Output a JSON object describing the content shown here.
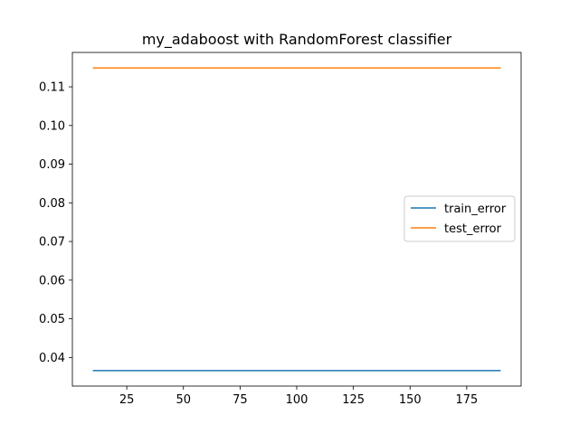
{
  "chart_data": {
    "type": "line",
    "title": "my_adaboost with RandomForest classifier",
    "xlabel": "",
    "ylabel": "",
    "x": [
      10,
      190
    ],
    "series": [
      {
        "name": "train_error",
        "color": "#1f77b4",
        "values": [
          0.0366,
          0.0366
        ]
      },
      {
        "name": "test_error",
        "color": "#ff7f0e",
        "values": [
          0.1149,
          0.1149
        ]
      }
    ],
    "xlim": [
      1,
      199
    ],
    "ylim": [
      0.0326,
      0.1189
    ],
    "xticks": [
      25,
      50,
      75,
      100,
      125,
      150,
      175
    ],
    "xtick_labels": [
      "25",
      "50",
      "75",
      "100",
      "125",
      "150",
      "175"
    ],
    "yticks": [
      0.04,
      0.05,
      0.06,
      0.07,
      0.08,
      0.09,
      0.1,
      0.11
    ],
    "ytick_labels": [
      "0.04",
      "0.05",
      "0.06",
      "0.07",
      "0.08",
      "0.09",
      "0.10",
      "0.11"
    ],
    "legend_position": "center-right",
    "grid": false
  }
}
